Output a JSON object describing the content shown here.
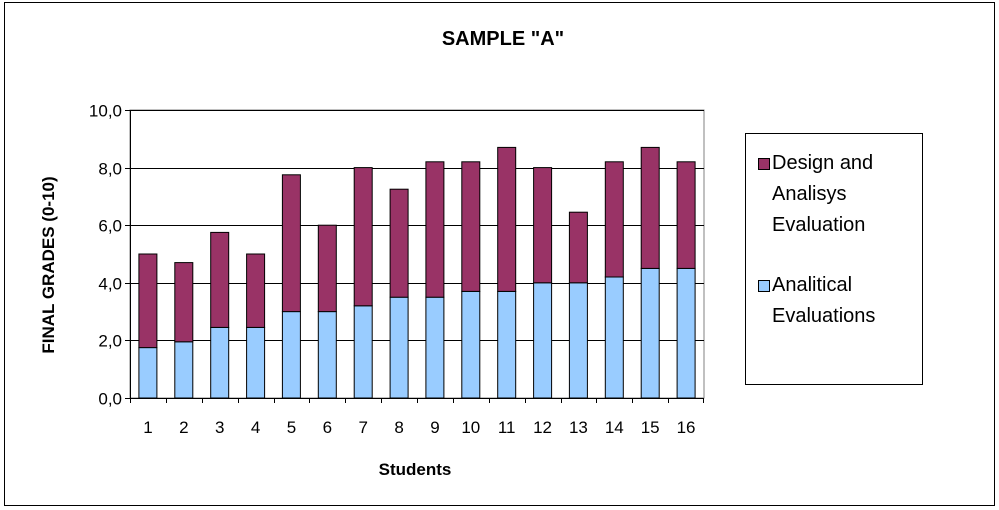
{
  "chart_data": {
    "type": "bar",
    "stacked": true,
    "title": "SAMPLE \"A\"",
    "xlabel": "Students",
    "ylabel": "FINAL GRADES (0-10)",
    "categories": [
      "1",
      "2",
      "3",
      "4",
      "5",
      "6",
      "7",
      "8",
      "9",
      "10",
      "11",
      "12",
      "13",
      "14",
      "15",
      "16"
    ],
    "ylim": [
      0,
      10
    ],
    "yticks": [
      "0,0",
      "2,0",
      "4,0",
      "6,0",
      "8,0",
      "10,0"
    ],
    "grid": true,
    "legend_position": "right",
    "series": [
      {
        "name": "Analitical Evaluations",
        "color": "#99ccff",
        "values": [
          1.75,
          1.95,
          2.45,
          2.45,
          3.0,
          3.0,
          3.2,
          3.5,
          3.5,
          3.7,
          3.7,
          4.0,
          4.0,
          4.2,
          4.5,
          4.5
        ]
      },
      {
        "name": "Design and Analisys Evaluation",
        "color": "#993366",
        "values": [
          3.25,
          2.75,
          3.3,
          2.55,
          4.75,
          3.0,
          4.8,
          3.75,
          4.7,
          4.5,
          5.0,
          4.0,
          2.45,
          4.0,
          4.2,
          3.7
        ]
      }
    ]
  }
}
